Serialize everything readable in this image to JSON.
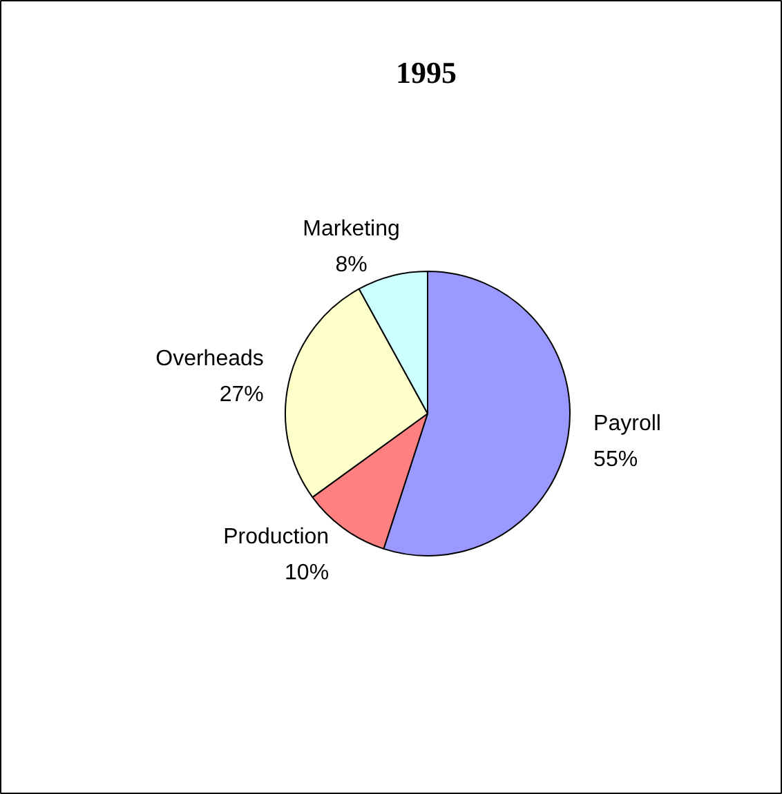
{
  "chart_data": {
    "type": "pie",
    "title": "1995",
    "categories": [
      "Payroll",
      "Production",
      "Overheads",
      "Marketing"
    ],
    "values": [
      55,
      10,
      27,
      8
    ],
    "value_labels": [
      "55%",
      "10%",
      "27%",
      "8%"
    ],
    "colors": [
      "#9999ff",
      "#ff8080",
      "#ffffcc",
      "#ccffff"
    ]
  }
}
